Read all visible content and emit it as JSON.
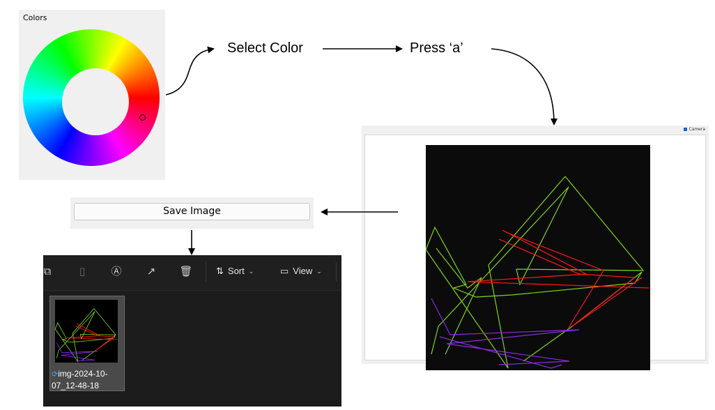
{
  "colors_panel": {
    "title": "Colors"
  },
  "flow": {
    "select_color": "Select Color",
    "press_key": "Press ‘a’"
  },
  "camera_window": {
    "tag": "Camera"
  },
  "save_bar": {
    "button_label": "Save Image"
  },
  "explorer": {
    "toolbar": {
      "icons": [
        "copy-icon",
        "paste-icon",
        "rename-icon",
        "share-icon",
        "delete-icon"
      ],
      "sort_label": "Sort",
      "view_label": "View"
    },
    "file": {
      "name": "img-2024-10-07_12-48-18"
    }
  },
  "colors": {
    "selected_color": "#ff0000",
    "line_green": "#7fd61a",
    "line_red": "#ff1a1a",
    "line_purple": "#8a2be2"
  }
}
